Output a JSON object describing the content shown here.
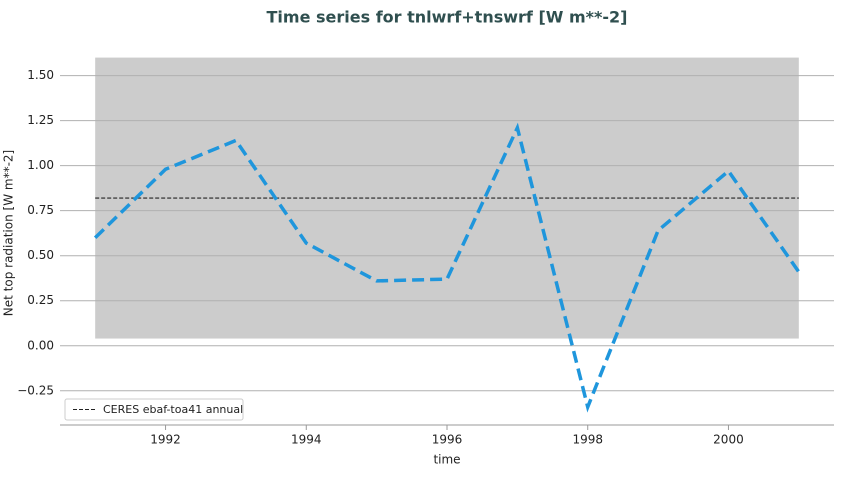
{
  "chart_data": {
    "type": "line",
    "title": "Time series for tnlwrf+tnswrf [W m**-2]",
    "x_label": "time",
    "y_label": "Net top radiation [W m**-2]",
    "x": [
      1991,
      1992,
      1993,
      1994,
      1995,
      1996,
      1997,
      1998,
      1999,
      2000,
      2001
    ],
    "series": [
      {
        "color": "#1f96dc",
        "values": [
          0.6,
          0.98,
          1.14,
          0.57,
          0.36,
          0.37,
          1.21,
          -0.34,
          0.64,
          0.97,
          0.41
        ]
      }
    ],
    "reference": {
      "name": "CERES ebaf-toa41 annual",
      "value": 0.82,
      "color": "#222222"
    },
    "band": {
      "x": [
        1991,
        2001
      ],
      "y": [
        0.04,
        1.6
      ],
      "color": "#cccccc"
    },
    "xlim": [
      1990.5,
      2001.5
    ],
    "ylim": [
      -0.44,
      1.67
    ],
    "xticks": [
      1992,
      1994,
      1996,
      1998,
      2000
    ],
    "yticks": [
      {
        "value": -0.25,
        "label": "−0.25"
      },
      {
        "value": 0,
        "label": "0.00"
      },
      0.25,
      {
        "value": 0.5,
        "label": "0.50"
      },
      0.75,
      {
        "value": 1,
        "label": "1.00"
      },
      1.25,
      {
        "value": 1.5,
        "label": "1.50"
      }
    ],
    "grid": true,
    "legend_position": "lower-left"
  }
}
